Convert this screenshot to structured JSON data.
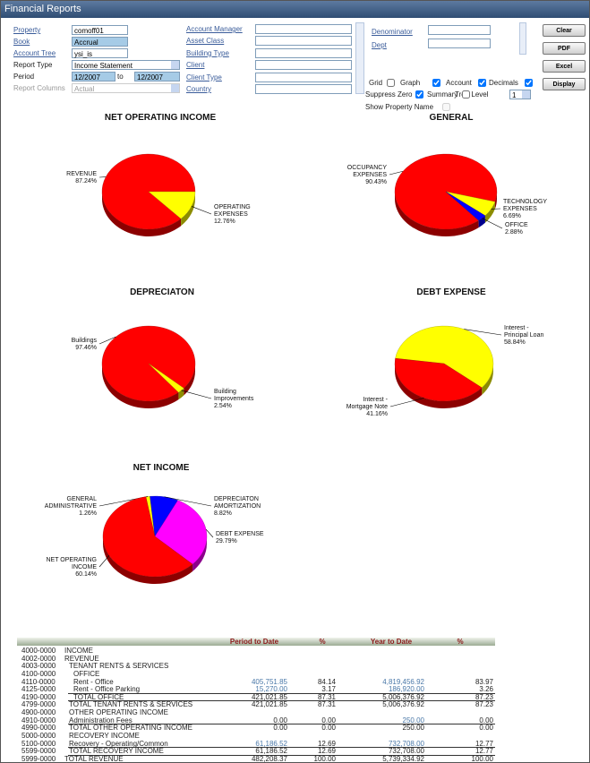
{
  "header": {
    "title": "Financial Reports"
  },
  "filters": {
    "property": {
      "label": "Property",
      "value": "comoff01"
    },
    "book": {
      "label": "Book",
      "value": "Accrual"
    },
    "account_tree": {
      "label": "Account Tree",
      "value": "ysi_is"
    },
    "report_type": {
      "label": "Report Type",
      "value": "Income Statement"
    },
    "period": {
      "label": "Period",
      "from": "12/2007",
      "to_label": "to",
      "to": "12/2007"
    },
    "report_columns": {
      "label": "Report Columns",
      "value": "Actual"
    },
    "attributes": [
      "Account Manager",
      "Asset Class",
      "Building Type",
      "Client",
      "Client Type",
      "Country"
    ],
    "denominator": "Denominator",
    "dept": "Dept"
  },
  "options": [
    {
      "label": "Grid",
      "checked": false
    },
    {
      "label": "Graph",
      "checked": true
    },
    {
      "label": "Account",
      "checked": true
    },
    {
      "label": "Decimals",
      "checked": true
    },
    {
      "label": "Suppress Zero",
      "checked": true
    },
    {
      "label": "Summary",
      "checked": false
    }
  ],
  "tree_level": {
    "label": "Tree Level",
    "value": "1"
  },
  "show_property_name": {
    "label": "Show Property Name",
    "checked": false
  },
  "buttons": [
    "Clear",
    "PDF",
    "Excel",
    "Display"
  ],
  "pies": [
    {
      "title": "NET OPERATING INCOME",
      "slices": [
        {
          "label": [
            "REVENUE"
          ],
          "value": 87.24,
          "value_label": "87.24%",
          "color": "#ff0000"
        },
        {
          "label": [
            "OPERATING",
            "EXPENSES"
          ],
          "value": 12.76,
          "value_label": "12.76%",
          "color": "#ffff00"
        }
      ]
    },
    {
      "title": "GENERAL",
      "slices": [
        {
          "label": [
            "OCCUPANCY",
            "EXPENSES"
          ],
          "value": 90.43,
          "value_label": "90.43%",
          "color": "#ff0000"
        },
        {
          "label": [
            "TECHNOLOGY",
            "EXPENSES"
          ],
          "value": 6.69,
          "value_label": "6.69%",
          "color": "#ffff00"
        },
        {
          "label": [
            "OFFICE"
          ],
          "value": 2.88,
          "value_label": "2.88%",
          "color": "#0000ff"
        }
      ]
    },
    {
      "title": "DEPRECIATON",
      "slices": [
        {
          "label": [
            "Buildings"
          ],
          "value": 97.46,
          "value_label": "97.46%",
          "color": "#ff0000"
        },
        {
          "label": [
            "Building",
            "Improvements"
          ],
          "value": 2.54,
          "value_label": "2.54%",
          "color": "#ffff00"
        }
      ]
    },
    {
      "title": "DEBT EXPENSE",
      "slices": [
        {
          "label": [
            "Interest -",
            "Principal Loan"
          ],
          "value": 58.84,
          "value_label": "58.84%",
          "color": "#ffff00"
        },
        {
          "label": [
            "Interest -",
            "Mortgage Note"
          ],
          "value": 41.16,
          "value_label": "41.16%",
          "color": "#ff0000"
        }
      ]
    },
    {
      "title": "NET INCOME",
      "slices": [
        {
          "label": [
            "GENERAL",
            "ADMINISTRATIVE"
          ],
          "value": 1.26,
          "value_label": "1.26%",
          "color": "#ffff00"
        },
        {
          "label": [
            "DEPRECIATON",
            "AMORTIZATION"
          ],
          "value": 8.82,
          "value_label": "8.82%",
          "color": "#0000ff"
        },
        {
          "label": [
            "DEBT EXPENSE"
          ],
          "value": 29.79,
          "value_label": "29.79%",
          "color": "#ff00ff"
        },
        {
          "label": [
            "NET OPERATING",
            "INCOME"
          ],
          "value": 60.14,
          "value_label": "60.14%",
          "color": "#ff0000"
        }
      ]
    }
  ],
  "table": {
    "columns": [
      "Period to Date",
      "%",
      "Year to Date",
      "%"
    ],
    "rows": [
      [
        "4000-0000",
        "INCOME",
        "",
        "",
        "",
        ""
      ],
      [
        "4002-0000",
        "REVENUE",
        "",
        "",
        "",
        ""
      ],
      [
        "4003-0000",
        "TENANT RENTS & SERVICES",
        "",
        "",
        "",
        ""
      ],
      [
        "4100-0000",
        "OFFICE",
        "",
        "",
        "",
        ""
      ],
      [
        "4110-0000",
        "Rent - Office",
        "405,751.85",
        "84.14",
        "4,819,456.92",
        "83.97"
      ],
      [
        "4125-0000",
        "Rent - Office Parking",
        "15,270.00",
        "3.17",
        "186,920.00",
        "3.26"
      ],
      [
        "4190-0000",
        "TOTAL OFFICE",
        "421,021.85",
        "87.31",
        "5,006,376.92",
        "87.23"
      ],
      [
        "4799-0000",
        "TOTAL TENANT RENTS & SERVICES",
        "421,021.85",
        "87.31",
        "5,006,376.92",
        "87.23"
      ],
      [
        "4900-0000",
        "OTHER OPERATING INCOME",
        "",
        "",
        "",
        ""
      ],
      [
        "4910-0000",
        "Administration Fees",
        "0.00",
        "0.00",
        "250.00",
        "0.00"
      ],
      [
        "4990-0000",
        "TOTAL OTHER OPERATING INCOME",
        "0.00",
        "0.00",
        "250.00",
        "0.00"
      ],
      [
        "5000-0000",
        "RECOVERY INCOME",
        "",
        "",
        "",
        ""
      ],
      [
        "5100-0000",
        "Recovery - Operating/Common",
        "61,186.52",
        "12.69",
        "732,708.00",
        "12.77"
      ],
      [
        "5599-0000",
        "TOTAL RECOVERY INCOME",
        "61,186.52",
        "12.69",
        "732,708.00",
        "12.77"
      ],
      [
        "5999-0000",
        "TOTAL REVENUE",
        "482,208.37",
        "100.00",
        "5,739,334.92",
        "100.00"
      ]
    ]
  }
}
